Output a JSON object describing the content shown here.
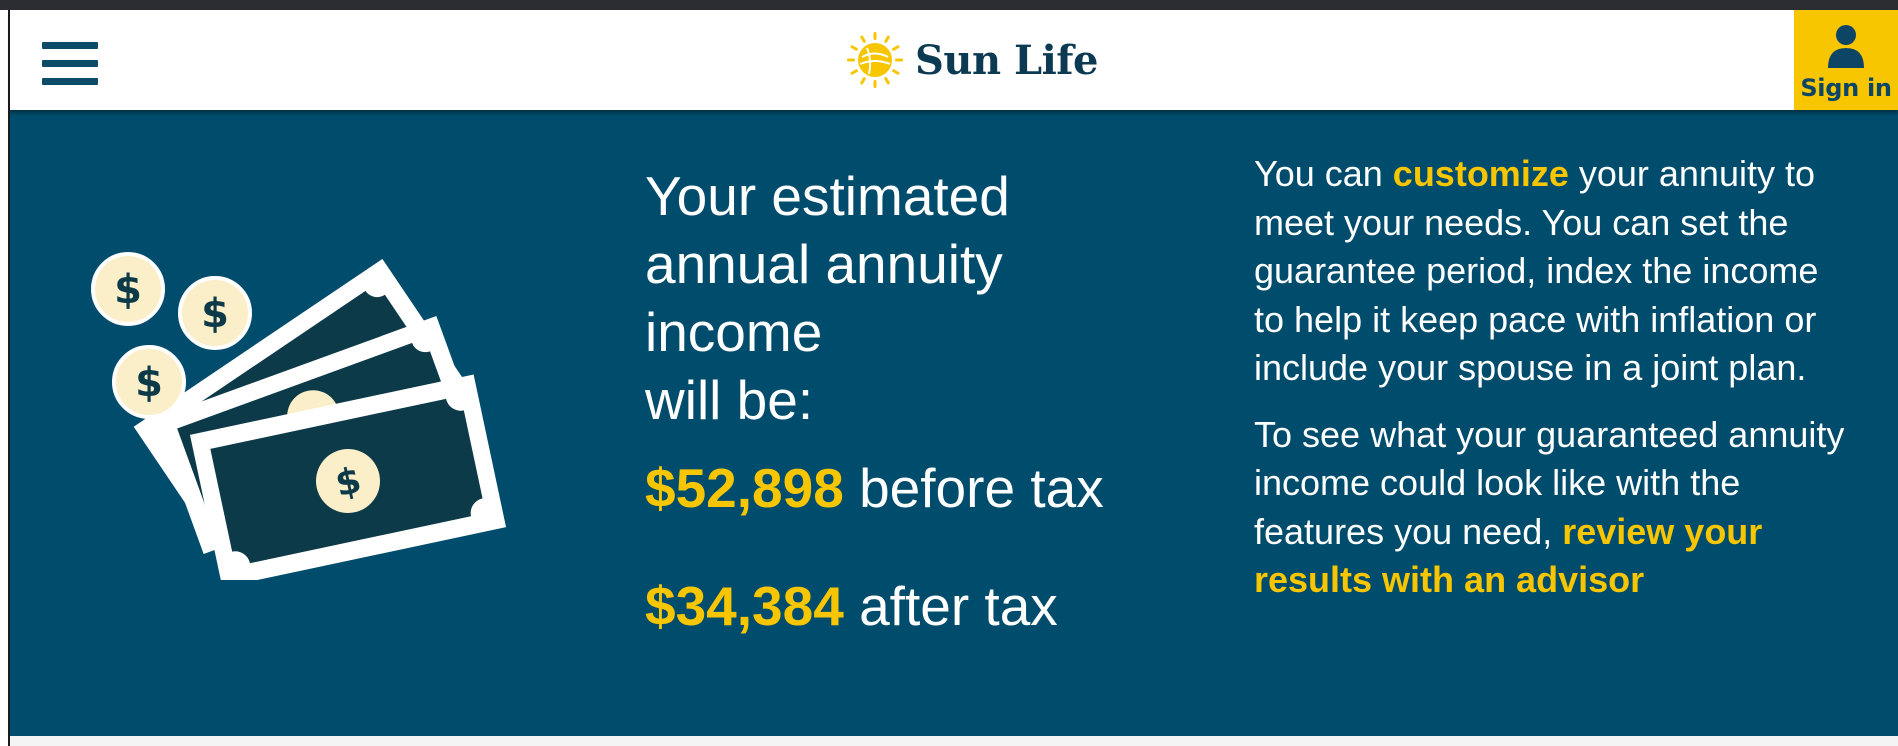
{
  "header": {
    "brand_name": "Sun Life",
    "signin_label": "Sign in"
  },
  "hero": {
    "headline_lines": [
      "Your estimated",
      "annual annuity",
      "income",
      "will be:"
    ],
    "before_tax": {
      "amount": "$52,898",
      "label": "before tax"
    },
    "after_tax": {
      "amount": "$34,384",
      "label": "after tax"
    },
    "paragraph1": {
      "lead": "You can ",
      "highlight": "customize",
      "rest": " your annuity to meet your needs. You can set the guarantee period, index the income to help it keep pace with inflation or include your spouse in a joint plan."
    },
    "paragraph2": {
      "text": "To see what your guaranteed annuity income could look like with the features you need, ",
      "link": "review your results with an advisor"
    }
  },
  "colors": {
    "brand_blue": "#004c6c",
    "accent_yellow": "#f7c600",
    "header_bg": "#ffffff",
    "money_dark": "#0c3a48",
    "coin_fill": "#fbefc9"
  },
  "icons": {
    "menu": "hamburger-menu-icon",
    "logo": "sun-logo-icon",
    "signin": "user-icon",
    "illustration": "money-bills-coins-icon"
  }
}
